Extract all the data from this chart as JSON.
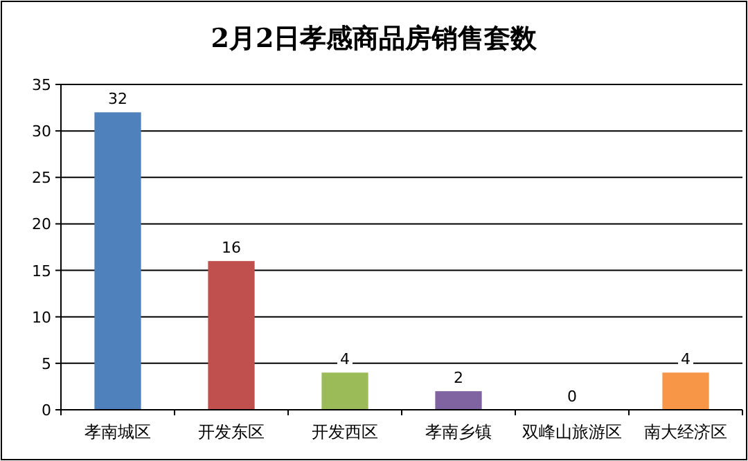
{
  "chart_data": {
    "type": "bar",
    "title": "2月2日孝感商品房销售套数",
    "categories": [
      "孝南城区",
      "开发东区",
      "开发西区",
      "孝南乡镇",
      "双峰山旅游区",
      "南大经济区"
    ],
    "values": [
      32,
      16,
      4,
      2,
      0,
      4
    ],
    "colors": [
      "#4f81bd",
      "#c0504d",
      "#9bbb59",
      "#8064a2",
      "#4bacc6",
      "#f79646"
    ],
    "ylim": [
      0,
      35
    ],
    "yticks": [
      0,
      5,
      10,
      15,
      20,
      25,
      30,
      35
    ],
    "grid": "y",
    "data_labels": true
  }
}
